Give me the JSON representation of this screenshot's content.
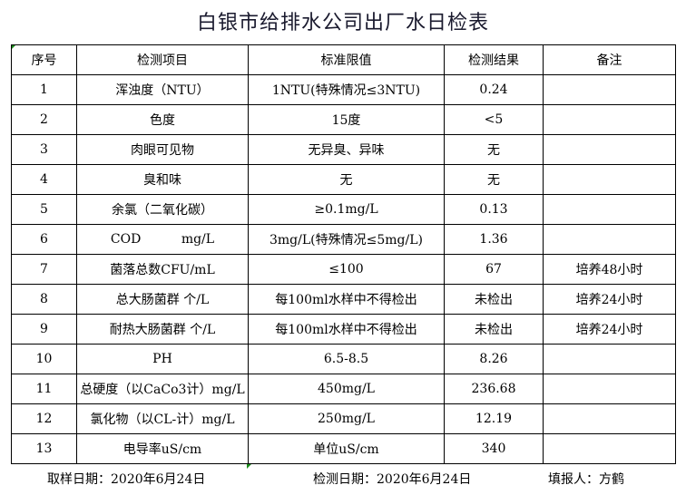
{
  "title": "白银市给排水公司出厂水日检表",
  "headers": [
    "序号",
    "检测项目",
    "标准限值",
    "检测结果",
    "备注"
  ],
  "rows": [
    [
      "1",
      "浑浊度（NTU）",
      "1NTU(特殊情况≤3NTU)",
      "0.24",
      ""
    ],
    [
      "2",
      "色度",
      "15度",
      "<5",
      ""
    ],
    [
      "3",
      "肉眼可见物",
      "无异臭、异味",
      "无",
      ""
    ],
    [
      "4",
      "臭和味",
      "无",
      "无",
      ""
    ],
    [
      "5",
      "余氯（二氧化碳）",
      "≥0.1mg/L",
      "0.13",
      ""
    ],
    [
      "6",
      "COD          mg/L",
      "3mg/L(特殊情况≤5mg/L)",
      "1.36",
      ""
    ],
    [
      "7",
      "菌落总数CFU/mL",
      "≤100",
      "67",
      "培养48小时"
    ],
    [
      "8",
      "总大肠菌群 个/L",
      "每100ml水样中不得检出",
      "未检出",
      "培养24小时"
    ],
    [
      "9",
      "耐热大肠菌群 个/L",
      "每100ml水样中不得检出",
      "未检出",
      "培养24小时"
    ],
    [
      "10",
      "PH",
      "6.5-8.5",
      "8.26",
      ""
    ],
    [
      "11",
      "总硬度（以CaCo3计）mg/L",
      "450mg/L",
      "236.68",
      ""
    ],
    [
      "12",
      "氯化物（以CL-计）mg/L",
      "250mg/L",
      "12.19",
      ""
    ],
    [
      "13",
      "电导率uS/cm",
      "单位uS/cm",
      "340",
      ""
    ]
  ],
  "footer": {
    "sample_date": "取样日期：2020年6月24日",
    "test_date": "检测日期：2020年6月24日",
    "reporter": "填报人：方鹤"
  }
}
